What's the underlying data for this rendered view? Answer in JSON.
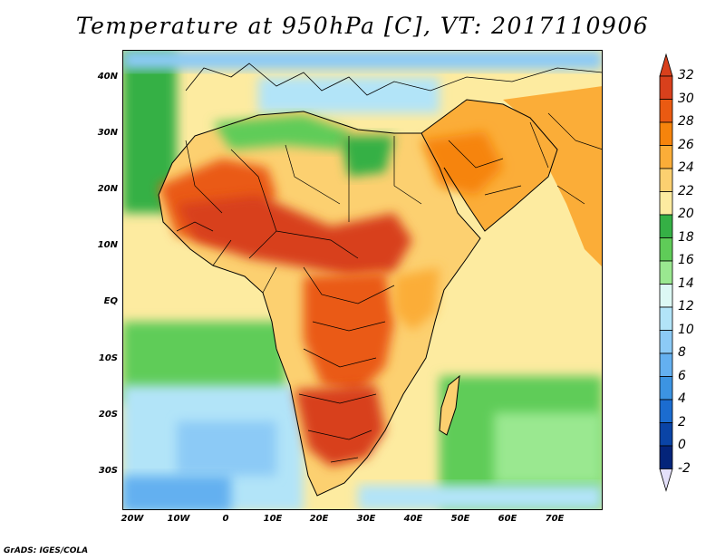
{
  "title": "Temperature at 950hPa [C], VT: 2017110906",
  "footer": "GrADS: IGES/COLA",
  "map": {
    "lat_ticks": [
      "40N",
      "30N",
      "20N",
      "10N",
      "EQ",
      "10S",
      "20S",
      "30S"
    ],
    "lon_ticks": [
      "20W",
      "10W",
      "0",
      "10E",
      "20E",
      "30E",
      "40E",
      "50E",
      "60E",
      "70E"
    ]
  },
  "colorbar": {
    "labels": [
      "32",
      "30",
      "28",
      "26",
      "24",
      "22",
      "20",
      "18",
      "16",
      "14",
      "12",
      "10",
      "8",
      "6",
      "4",
      "2",
      "0",
      "-2"
    ],
    "colors": [
      "#d8401c",
      "#ea5a12",
      "#f6840c",
      "#fbad38",
      "#fcd070",
      "#fdeba0",
      "#35b045",
      "#5fcc58",
      "#9ae890",
      "#dcf8f4",
      "#b2e4f8",
      "#8ccaf6",
      "#64b0f0",
      "#3c94e2",
      "#1b6cd0",
      "#0a44a6",
      "#04247a"
    ],
    "over_color": "#d8401c",
    "under_color": "#e4e0fa"
  }
}
